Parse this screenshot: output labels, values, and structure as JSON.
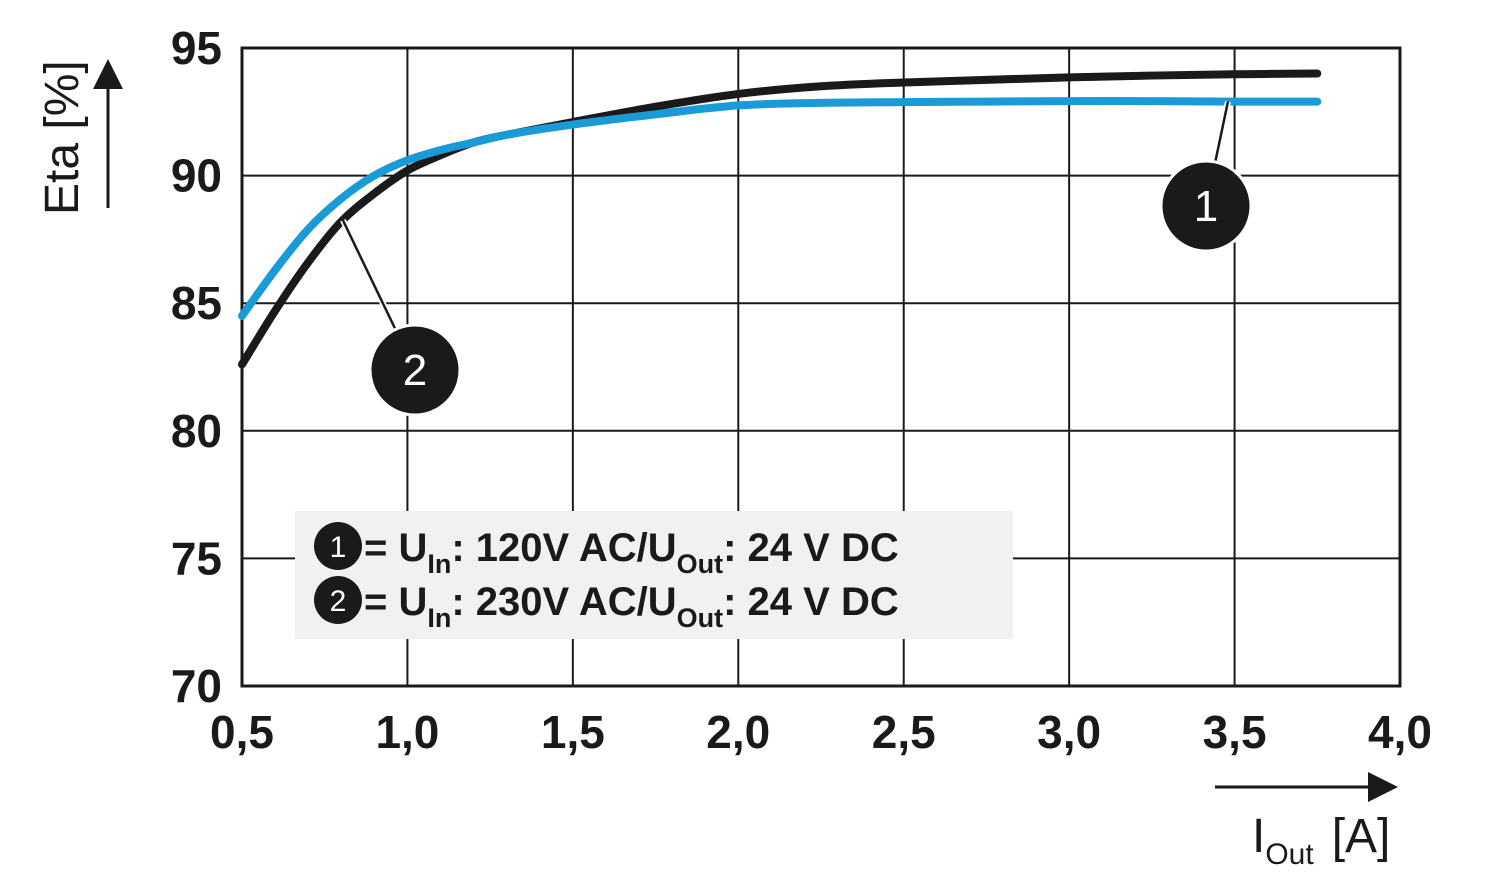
{
  "chart_data": {
    "type": "line",
    "title": "",
    "xlabel": {
      "main": "I",
      "sub": "Out",
      "unit": "[A]"
    },
    "ylabel": "Eta [%]",
    "xlim": [
      0.5,
      4.0
    ],
    "ylim": [
      70,
      95
    ],
    "x_ticks": [
      0.5,
      1.0,
      1.5,
      2.0,
      2.5,
      3.0,
      3.5,
      4.0
    ],
    "x_tick_labels": [
      "0,5",
      "1,0",
      "1,5",
      "2,0",
      "2,5",
      "3,0",
      "3,5",
      "4,0"
    ],
    "y_ticks": [
      70,
      75,
      80,
      85,
      90,
      95
    ],
    "y_tick_labels": [
      "70",
      "75",
      "80",
      "85",
      "90",
      "95"
    ],
    "grid": true,
    "legend_position": "lower-left",
    "series": [
      {
        "marker": "1",
        "color": "#1a9ad6",
        "x": [
          0.5,
          0.6,
          0.7,
          0.8,
          0.9,
          1.0,
          1.1,
          1.2,
          1.3,
          1.5,
          1.75,
          2.0,
          2.25,
          2.5,
          2.75,
          3.0,
          3.25,
          3.5,
          3.75
        ],
        "y": [
          84.5,
          86.3,
          87.9,
          89.1,
          90.0,
          90.6,
          91.0,
          91.3,
          91.6,
          92.0,
          92.4,
          92.75,
          92.85,
          92.88,
          92.9,
          92.92,
          92.92,
          92.9,
          92.9
        ],
        "label_parts": [
          "= U",
          "In",
          ": 120V AC/U",
          "Out",
          ": 24 V DC"
        ]
      },
      {
        "marker": "2",
        "color": "#1a1a1a",
        "x": [
          0.5,
          0.6,
          0.7,
          0.8,
          0.9,
          1.0,
          1.1,
          1.2,
          1.3,
          1.5,
          1.75,
          2.0,
          2.25,
          2.5,
          2.75,
          3.0,
          3.25,
          3.5,
          3.75
        ],
        "y": [
          82.6,
          84.7,
          86.6,
          88.2,
          89.3,
          90.2,
          90.8,
          91.3,
          91.6,
          92.1,
          92.7,
          93.2,
          93.5,
          93.65,
          93.75,
          93.85,
          93.92,
          93.97,
          94.0
        ],
        "label_parts": [
          "= U",
          "In",
          ": 230V AC/U",
          "Out",
          ": 24 V DC"
        ]
      }
    ]
  }
}
